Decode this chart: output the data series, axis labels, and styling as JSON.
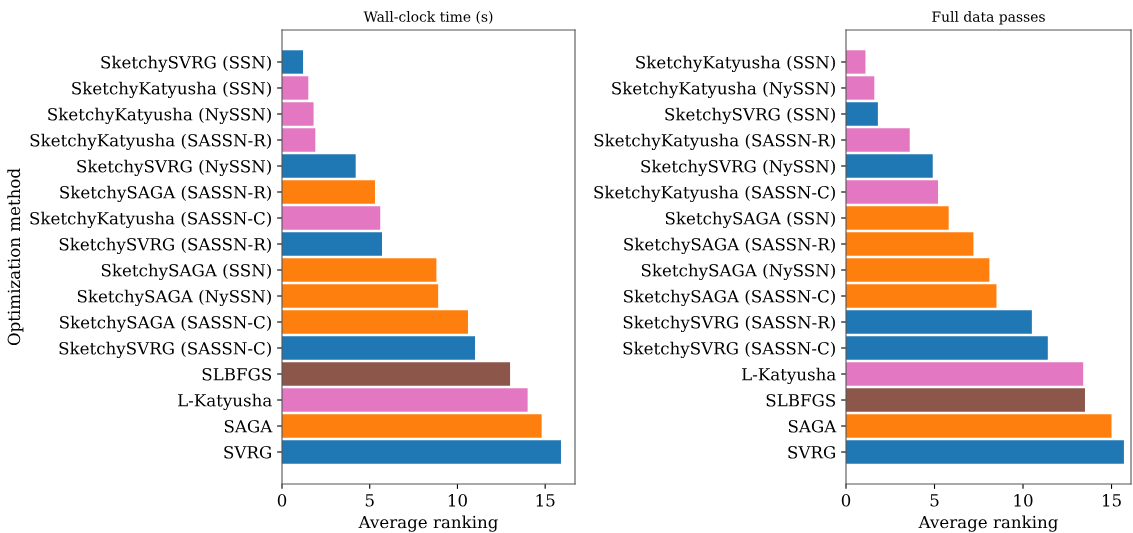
{
  "chart_data": [
    {
      "type": "bar",
      "orientation": "horizontal",
      "title": "Wall-clock time (s)",
      "xlabel": "Average ranking",
      "ylabel": "Optimization method",
      "categories": [
        "SketchySVRG (SSN)",
        "SketchyKatyusha (SSN)",
        "SketchyKatyusha (NySSN)",
        "SketchyKatyusha (SASSN-R)",
        "SketchySVRG (NySSN)",
        "SketchySAGA (SASSN-R)",
        "SketchyKatyusha (SASSN-C)",
        "SketchySVRG (SASSN-R)",
        "SketchySAGA (SSN)",
        "SketchySAGA (NySSN)",
        "SketchySAGA (SASSN-C)",
        "SketchySVRG (SASSN-C)",
        "SLBFGS",
        "L-Katyusha",
        "SAGA",
        "SVRG"
      ],
      "values": [
        1.2,
        1.5,
        1.8,
        1.9,
        4.2,
        5.3,
        5.6,
        5.7,
        8.8,
        8.9,
        10.6,
        11.0,
        13.0,
        14.0,
        14.8,
        15.9
      ],
      "colors": [
        "#1f77b4",
        "#e377c2",
        "#e377c2",
        "#e377c2",
        "#1f77b4",
        "#ff7f0e",
        "#e377c2",
        "#1f77b4",
        "#ff7f0e",
        "#ff7f0e",
        "#ff7f0e",
        "#1f77b4",
        "#8c564b",
        "#e377c2",
        "#ff7f0e",
        "#1f77b4"
      ],
      "xlim": [
        0,
        16.7
      ],
      "xticks": [
        0,
        5,
        10,
        15
      ],
      "grid": false
    },
    {
      "type": "bar",
      "orientation": "horizontal",
      "title": "Full data passes",
      "xlabel": "Average ranking",
      "categories": [
        "SketchyKatyusha (SSN)",
        "SketchyKatyusha (NySSN)",
        "SketchySVRG (SSN)",
        "SketchyKatyusha (SASSN-R)",
        "SketchySVRG (NySSN)",
        "SketchyKatyusha (SASSN-C)",
        "SketchySAGA (SSN)",
        "SketchySAGA (SASSN-R)",
        "SketchySAGA (NySSN)",
        "SketchySAGA (SASSN-C)",
        "SketchySVRG (SASSN-R)",
        "SketchySVRG (SASSN-C)",
        "L-Katyusha",
        "SLBFGS",
        "SAGA",
        "SVRG"
      ],
      "values": [
        1.1,
        1.6,
        1.8,
        3.6,
        4.9,
        5.2,
        5.8,
        7.2,
        8.1,
        8.5,
        10.5,
        11.4,
        13.4,
        13.5,
        15.0,
        15.7
      ],
      "colors": [
        "#e377c2",
        "#e377c2",
        "#1f77b4",
        "#e377c2",
        "#1f77b4",
        "#e377c2",
        "#ff7f0e",
        "#ff7f0e",
        "#ff7f0e",
        "#ff7f0e",
        "#1f77b4",
        "#1f77b4",
        "#e377c2",
        "#8c564b",
        "#ff7f0e",
        "#1f77b4"
      ],
      "xlim": [
        0,
        16.1
      ],
      "xticks": [
        0,
        5,
        10,
        15
      ],
      "grid": false
    }
  ]
}
